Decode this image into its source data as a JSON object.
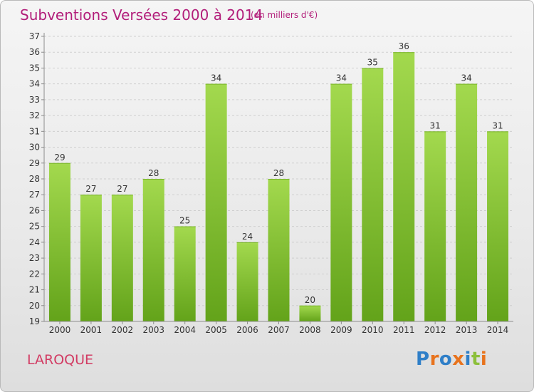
{
  "header": {
    "title": "Subventions Versées 2000 à 2014",
    "unit": "(en milliers d'€)"
  },
  "commune": "LAROQUE",
  "logo": {
    "text": "Proxiti",
    "letter_colors": [
      "#2f7fc8",
      "#e8731d",
      "#2f7fc8",
      "#e8731d",
      "#2f7fc8",
      "#8cbf3a",
      "#e8731d"
    ]
  },
  "colors": {
    "bar_top": "#a3d94e",
    "bar_bottom": "#63a31a",
    "grid": "#cfcfcf",
    "axis": "#8c8c8c",
    "text": "#333333",
    "title": "#b21e7a"
  },
  "chart_data": {
    "type": "bar",
    "title": "Subventions Versées 2000 à 2014",
    "xlabel": "",
    "ylabel": "",
    "categories": [
      "2000",
      "2001",
      "2002",
      "2003",
      "2004",
      "2005",
      "2006",
      "2007",
      "2008",
      "2009",
      "2010",
      "2011",
      "2012",
      "2013",
      "2014"
    ],
    "values": [
      29,
      27,
      27,
      28,
      25,
      34,
      24,
      28,
      20,
      34,
      35,
      36,
      31,
      34,
      31
    ],
    "ylim": [
      19,
      37
    ],
    "yticks": [
      19,
      20,
      21,
      22,
      23,
      24,
      25,
      26,
      27,
      28,
      29,
      30,
      31,
      32,
      33,
      34,
      35,
      36,
      37
    ],
    "grid": true,
    "data_labels": true
  }
}
